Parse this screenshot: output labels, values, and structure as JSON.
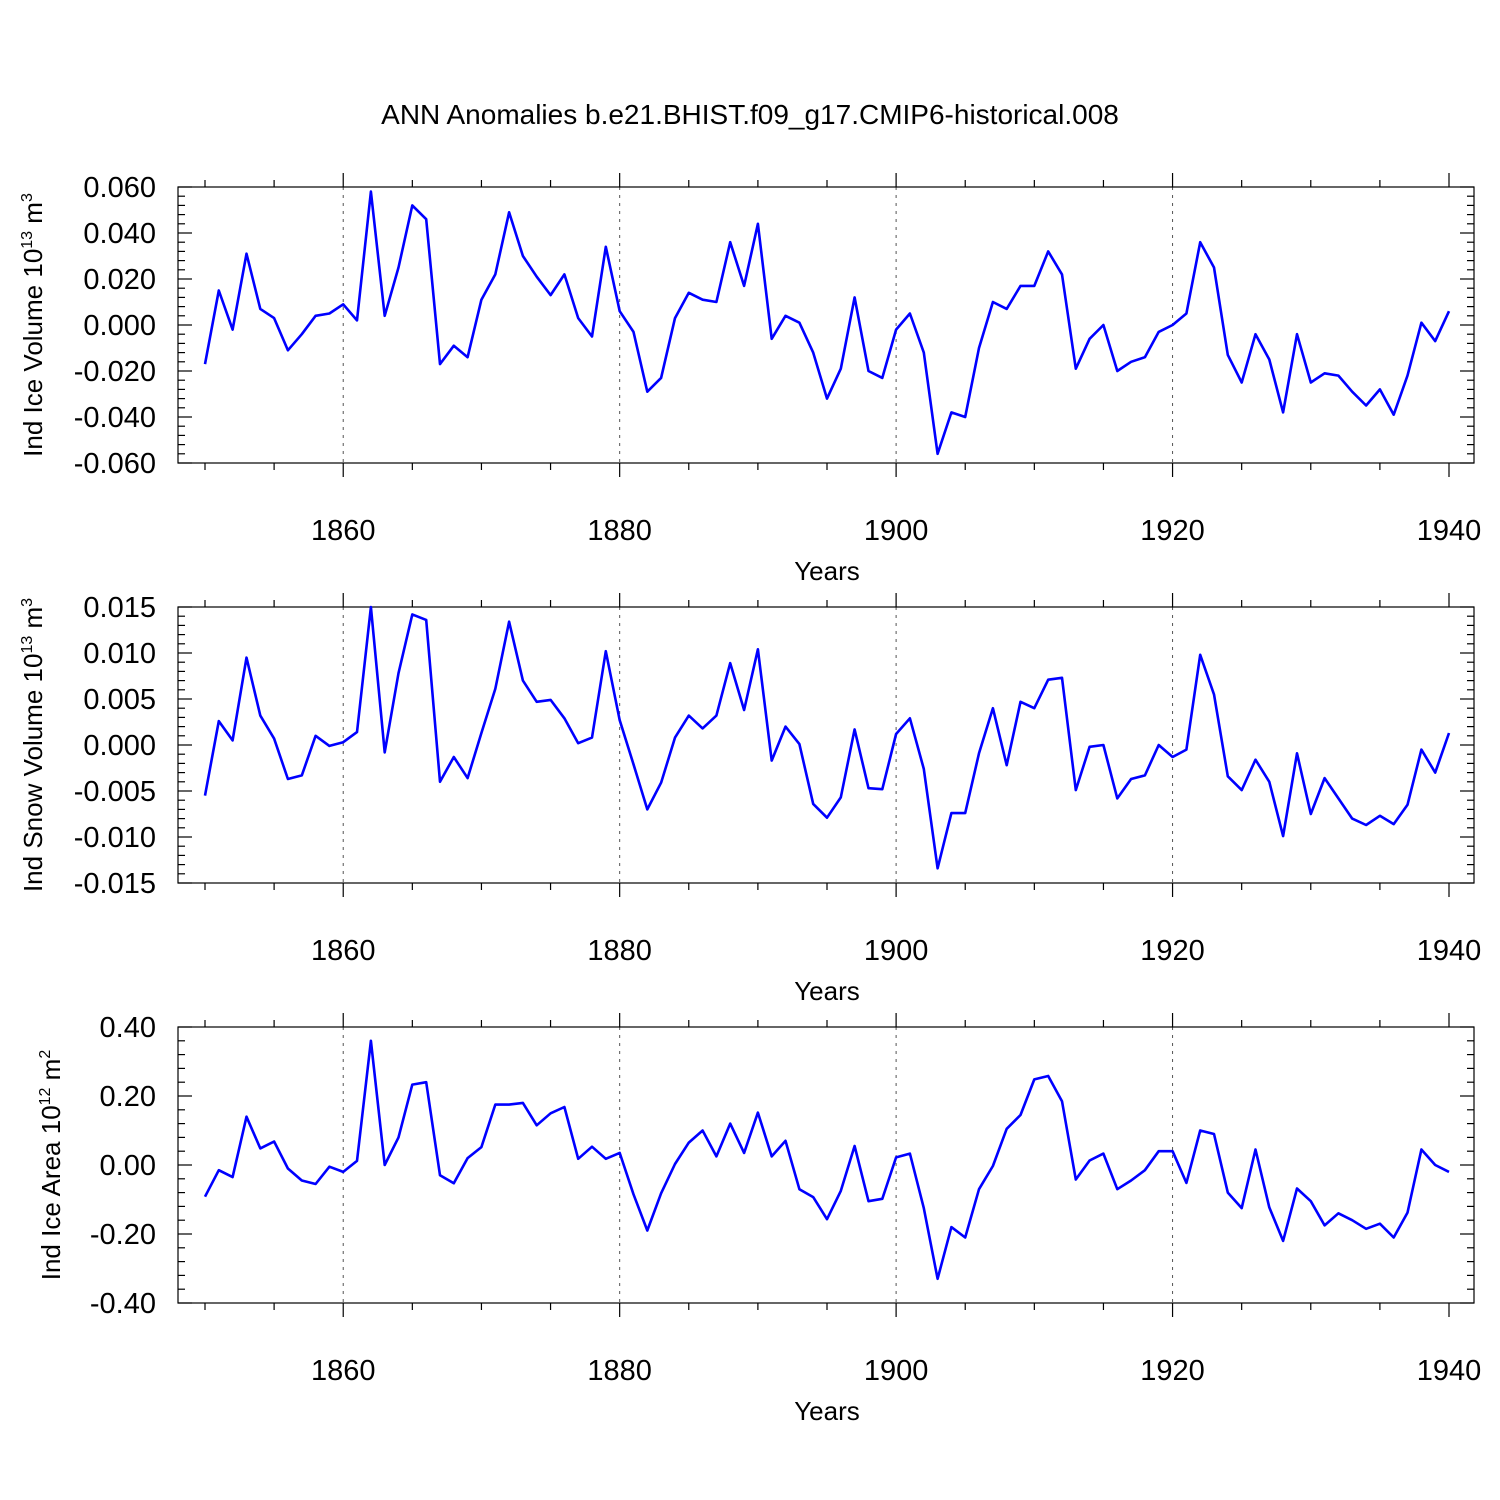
{
  "title": "ANN Anomalies b.e21.BHIST.f09_g17.CMIP6-historical.008",
  "colors": {
    "series": "#0000ff",
    "axes": "#000000",
    "grid": "#555555"
  },
  "chart_data": [
    {
      "type": "line",
      "ylabel": {
        "text": "Ind Ice Volume 10",
        "sup": "13",
        "unit": " m",
        "unit_sup": "3"
      },
      "xlabel": "Years",
      "xlim": [
        1850,
        1940
      ],
      "ylim": [
        -0.06,
        0.06
      ],
      "xticks": [
        1860,
        1880,
        1900,
        1920,
        1940
      ],
      "yticks": [
        0.06,
        0.04,
        0.02,
        0.0,
        -0.02,
        -0.04,
        -0.06
      ],
      "ytick_labels": [
        "0.060",
        "0.040",
        "0.020",
        "0.000",
        "-0.020",
        "-0.040",
        "-0.060"
      ],
      "grid_x": [
        1860,
        1880,
        1900,
        1920
      ],
      "x_start": 1850,
      "values": [
        -0.017,
        0.015,
        -0.002,
        0.031,
        0.007,
        0.003,
        -0.011,
        -0.004,
        0.004,
        0.005,
        0.009,
        0.002,
        0.058,
        0.004,
        0.025,
        0.052,
        0.046,
        -0.017,
        -0.009,
        -0.014,
        0.011,
        0.022,
        0.049,
        0.03,
        0.021,
        0.013,
        0.022,
        0.003,
        -0.005,
        0.034,
        0.006,
        -0.003,
        -0.029,
        -0.023,
        0.003,
        0.014,
        0.011,
        0.01,
        0.036,
        0.017,
        0.044,
        -0.006,
        0.004,
        0.001,
        -0.012,
        -0.032,
        -0.019,
        0.012,
        -0.02,
        -0.023,
        -0.002,
        0.005,
        -0.012,
        -0.056,
        -0.038,
        -0.04,
        -0.01,
        0.01,
        0.007,
        0.017,
        0.017,
        0.032,
        0.022,
        -0.019,
        -0.006,
        0.0,
        -0.02,
        -0.016,
        -0.014,
        -0.003,
        0.0,
        0.005,
        0.036,
        0.025,
        -0.013,
        -0.025,
        -0.004,
        -0.015,
        -0.038,
        -0.004,
        -0.025,
        -0.021,
        -0.022,
        -0.029,
        -0.035,
        -0.028,
        -0.039,
        -0.022,
        0.001,
        -0.007,
        0.006
      ]
    },
    {
      "type": "line",
      "ylabel": {
        "text": "Ind Snow Volume 10",
        "sup": "13",
        "unit": " m",
        "unit_sup": "3"
      },
      "xlabel": "Years",
      "xlim": [
        1850,
        1940
      ],
      "ylim": [
        -0.015,
        0.015
      ],
      "xticks": [
        1860,
        1880,
        1900,
        1920,
        1940
      ],
      "yticks": [
        0.015,
        0.01,
        0.005,
        0.0,
        -0.005,
        -0.01,
        -0.015
      ],
      "ytick_labels": [
        "0.015",
        "0.010",
        "0.005",
        "0.000",
        "-0.005",
        "-0.010",
        "-0.015"
      ],
      "grid_x": [
        1860,
        1880,
        1900,
        1920
      ],
      "x_start": 1850,
      "values": [
        -0.0055,
        0.0026,
        0.0005,
        0.0095,
        0.0032,
        0.0007,
        -0.0037,
        -0.0033,
        0.001,
        -0.0001,
        0.0003,
        0.0014,
        0.015,
        -0.0008,
        0.0078,
        0.0142,
        0.0136,
        -0.004,
        -0.0013,
        -0.0036,
        0.0013,
        0.0061,
        0.0134,
        0.007,
        0.0047,
        0.0049,
        0.0029,
        0.0002,
        0.0008,
        0.0102,
        0.0027,
        -0.0021,
        -0.007,
        -0.0041,
        0.0008,
        0.0032,
        0.0018,
        0.0032,
        0.0089,
        0.0038,
        0.0104,
        -0.0017,
        0.002,
        0.0001,
        -0.0064,
        -0.0079,
        -0.0057,
        0.0017,
        -0.0047,
        -0.0048,
        0.0012,
        0.0029,
        -0.0026,
        -0.0134,
        -0.0074,
        -0.0074,
        -0.0009,
        0.004,
        -0.0022,
        0.0047,
        0.004,
        0.0071,
        0.0073,
        -0.0049,
        -0.0002,
        0.0,
        -0.0058,
        -0.0037,
        -0.0033,
        0.0,
        -0.0013,
        -0.0005,
        0.0098,
        0.0055,
        -0.0034,
        -0.0049,
        -0.0016,
        -0.004,
        -0.0099,
        -0.0009,
        -0.0075,
        -0.0036,
        -0.0058,
        -0.008,
        -0.0087,
        -0.0077,
        -0.0086,
        -0.0065,
        -0.0005,
        -0.003,
        0.0013
      ]
    },
    {
      "type": "line",
      "ylabel": {
        "text": "Ind Ice Area 10",
        "sup": "12",
        "unit": " m",
        "unit_sup": "2"
      },
      "xlabel": "Years",
      "xlim": [
        1850,
        1940
      ],
      "ylim": [
        -0.4,
        0.4
      ],
      "xticks": [
        1860,
        1880,
        1900,
        1920,
        1940
      ],
      "yticks": [
        0.4,
        0.2,
        0.0,
        -0.2,
        -0.4
      ],
      "ytick_labels": [
        "0.40",
        "0.20",
        "0.00",
        "-0.20",
        "-0.40"
      ],
      "grid_x": [
        1860,
        1880,
        1900,
        1920
      ],
      "x_start": 1850,
      "values": [
        -0.092,
        -0.015,
        -0.035,
        0.14,
        0.048,
        0.068,
        -0.01,
        -0.045,
        -0.055,
        -0.005,
        -0.02,
        0.012,
        0.36,
        0.0,
        0.08,
        0.233,
        0.24,
        -0.03,
        -0.053,
        0.02,
        0.052,
        0.175,
        0.175,
        0.18,
        0.115,
        0.15,
        0.168,
        0.018,
        0.053,
        0.018,
        0.035,
        -0.085,
        -0.19,
        -0.082,
        0.003,
        0.065,
        0.1,
        0.025,
        0.12,
        0.035,
        0.152,
        0.025,
        0.07,
        -0.07,
        -0.093,
        -0.157,
        -0.075,
        0.055,
        -0.105,
        -0.098,
        0.022,
        0.033,
        -0.125,
        -0.33,
        -0.18,
        -0.21,
        -0.07,
        -0.003,
        0.105,
        0.145,
        0.248,
        0.258,
        0.185,
        -0.042,
        0.013,
        0.033,
        -0.07,
        -0.045,
        -0.015,
        0.04,
        0.04,
        -0.052,
        0.1,
        0.09,
        -0.08,
        -0.125,
        0.045,
        -0.123,
        -0.22,
        -0.068,
        -0.105,
        -0.175,
        -0.14,
        -0.16,
        -0.185,
        -0.17,
        -0.21,
        -0.138,
        0.045,
        0.0,
        -0.02
      ]
    }
  ]
}
